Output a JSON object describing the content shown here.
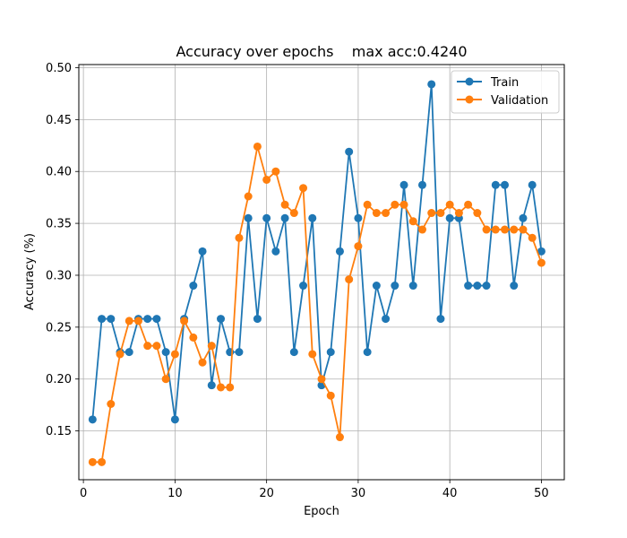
{
  "chart_data": {
    "type": "line",
    "title": "Accuracy over epochs    max acc:0.4240",
    "xlabel": "Epoch",
    "ylabel": "Accuracy (%)",
    "xlim": [
      -0.5,
      52.5
    ],
    "ylim": [
      0.103,
      0.503
    ],
    "xticks": [
      0,
      10,
      20,
      30,
      40,
      50
    ],
    "yticks": [
      0.15,
      0.2,
      0.25,
      0.3,
      0.35,
      0.4,
      0.45,
      0.5
    ],
    "grid": true,
    "legend": "top-right",
    "x": [
      1,
      2,
      3,
      4,
      5,
      6,
      7,
      8,
      9,
      10,
      11,
      12,
      13,
      14,
      15,
      16,
      17,
      18,
      19,
      20,
      21,
      22,
      23,
      24,
      25,
      26,
      27,
      28,
      29,
      30,
      31,
      32,
      33,
      34,
      35,
      36,
      37,
      38,
      39,
      40,
      41,
      42,
      43,
      44,
      45,
      46,
      47,
      48,
      49,
      50
    ],
    "series": [
      {
        "name": "Train",
        "color": "#1f77b4",
        "values": [
          0.161,
          0.258,
          0.258,
          0.226,
          0.226,
          0.258,
          0.258,
          0.258,
          0.226,
          0.161,
          0.258,
          0.29,
          0.323,
          0.194,
          0.258,
          0.226,
          0.226,
          0.355,
          0.258,
          0.355,
          0.323,
          0.355,
          0.226,
          0.29,
          0.355,
          0.194,
          0.226,
          0.323,
          0.419,
          0.355,
          0.226,
          0.29,
          0.258,
          0.29,
          0.387,
          0.29,
          0.387,
          0.484,
          0.258,
          0.355,
          0.355,
          0.29,
          0.29,
          0.29,
          0.387,
          0.387,
          0.29,
          0.355,
          0.387,
          0.323
        ]
      },
      {
        "name": "Validation",
        "color": "#ff7f0e",
        "values": [
          0.12,
          0.12,
          0.176,
          0.224,
          0.256,
          0.256,
          0.232,
          0.232,
          0.2,
          0.224,
          0.256,
          0.24,
          0.216,
          0.232,
          0.192,
          0.192,
          0.336,
          0.376,
          0.424,
          0.392,
          0.4,
          0.368,
          0.36,
          0.384,
          0.224,
          0.2,
          0.184,
          0.144,
          0.296,
          0.328,
          0.368,
          0.36,
          0.36,
          0.368,
          0.368,
          0.352,
          0.344,
          0.36,
          0.36,
          0.368,
          0.36,
          0.368,
          0.36,
          0.344,
          0.344,
          0.344,
          0.344,
          0.344,
          0.336,
          0.312
        ]
      }
    ]
  }
}
